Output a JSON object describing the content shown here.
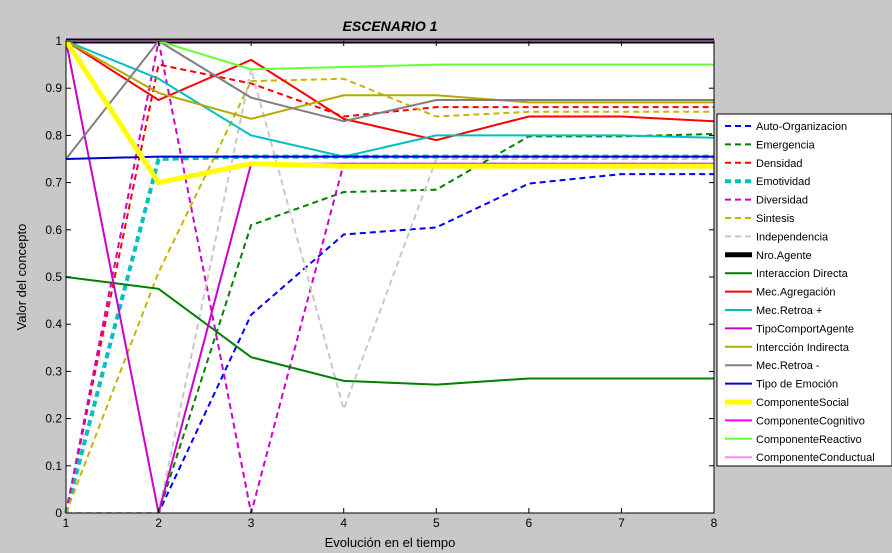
{
  "chart_data": {
    "type": "line",
    "title": "ESCENARIO 1",
    "xlabel": "Evolución en el tiempo",
    "ylabel": "Valor del concepto",
    "xlim": [
      1,
      8
    ],
    "ylim": [
      0,
      1
    ],
    "xticks": [
      "1",
      "2",
      "3",
      "4",
      "5",
      "6",
      "7",
      "8"
    ],
    "yticks": [
      "0",
      "0.1",
      "0.2",
      "0.3",
      "0.4",
      "0.5",
      "0.6",
      "0.7",
      "0.8",
      "0.9",
      "1"
    ],
    "x": [
      1,
      2,
      3,
      4,
      5,
      6,
      7,
      8
    ],
    "grid": false,
    "legend_position": "right",
    "series": [
      {
        "name": "Auto-Organizacion",
        "color": "#0000ff",
        "dash": true,
        "width": 2,
        "values": [
          0,
          0,
          0.42,
          0.59,
          0.605,
          0.698,
          0.718,
          0.718
        ]
      },
      {
        "name": "Emergencia",
        "color": "#008000",
        "dash": true,
        "width": 2,
        "values": [
          0,
          0,
          0.61,
          0.68,
          0.685,
          0.798,
          0.798,
          0.803
        ]
      },
      {
        "name": "Densidad",
        "color": "#ff0000",
        "dash": true,
        "width": 2,
        "values": [
          0,
          0.95,
          0.91,
          0.84,
          0.86,
          0.86,
          0.86,
          0.86
        ]
      },
      {
        "name": "Emotividad",
        "color": "#00c0c0",
        "dash": true,
        "width": 4,
        "values": [
          0,
          0.75,
          0.755,
          0.755,
          0.755,
          0.755,
          0.755,
          0.755
        ]
      },
      {
        "name": "Diversidad",
        "color": "#cc00cc",
        "dash": true,
        "width": 2,
        "values": [
          0,
          1,
          0,
          0.74,
          0.74,
          0.74,
          0.74,
          0.74
        ]
      },
      {
        "name": "Sintesis",
        "color": "#c8b400",
        "dash": true,
        "width": 2,
        "values": [
          0,
          0.51,
          0.915,
          0.92,
          0.84,
          0.85,
          0.85,
          0.85
        ]
      },
      {
        "name": "Independencia",
        "color": "#c8c8c8",
        "dash": true,
        "width": 2,
        "values": [
          0,
          0,
          0.94,
          0.22,
          0.75,
          0.75,
          0.75,
          0.75
        ]
      },
      {
        "name": "Nro.Agente",
        "color": "#000000",
        "dash": false,
        "width": 5,
        "values": [
          1,
          1,
          1,
          1,
          1,
          1,
          1,
          1
        ]
      },
      {
        "name": "Interaccion Directa",
        "color": "#008000",
        "dash": false,
        "width": 2,
        "values": [
          0.5,
          0.475,
          0.33,
          0.28,
          0.272,
          0.285,
          0.285,
          0.285
        ]
      },
      {
        "name": "Mec.Agregación",
        "color": "#ff0000",
        "dash": false,
        "width": 2,
        "values": [
          1,
          0.875,
          0.96,
          0.835,
          0.79,
          0.84,
          0.84,
          0.83
        ]
      },
      {
        "name": "Mec.Retroa +",
        "color": "#00c0c0",
        "dash": false,
        "width": 2,
        "values": [
          1,
          0.92,
          0.8,
          0.755,
          0.8,
          0.8,
          0.8,
          0.795
        ]
      },
      {
        "name": "TipoComportAgente",
        "color": "#cc00cc",
        "dash": false,
        "width": 2,
        "values": [
          1,
          0,
          0.74,
          0.74,
          0.74,
          0.74,
          0.74,
          0.74
        ]
      },
      {
        "name": "Intercción Indirecta",
        "color": "#b4aa00",
        "dash": false,
        "width": 2,
        "values": [
          1,
          0.89,
          0.835,
          0.885,
          0.885,
          0.87,
          0.87,
          0.87
        ]
      },
      {
        "name": "Mec.Retroa -",
        "color": "#808080",
        "dash": false,
        "width": 2,
        "values": [
          0.75,
          1,
          0.88,
          0.83,
          0.875,
          0.875,
          0.875,
          0.875
        ]
      },
      {
        "name": "Tipo de Emoción",
        "color": "#0000cc",
        "dash": false,
        "width": 2,
        "values": [
          0.75,
          0.755,
          0.755,
          0.755,
          0.755,
          0.755,
          0.755,
          0.755
        ]
      },
      {
        "name": "ComponenteSocial",
        "color": "#ffff00",
        "dash": false,
        "width": 5,
        "values": [
          1,
          0.7,
          0.74,
          0.735,
          0.735,
          0.735,
          0.735,
          0.735
        ]
      },
      {
        "name": "ComponenteCognitivo",
        "color": "#ff00ff",
        "dash": false,
        "width": 2,
        "values": [
          1,
          1,
          1,
          1,
          1,
          1,
          1,
          1
        ]
      },
      {
        "name": "ComponenteReactivo",
        "color": "#66ff33",
        "dash": false,
        "width": 2,
        "values": [
          1,
          1,
          0.94,
          0.945,
          0.95,
          0.95,
          0.95,
          0.95
        ]
      },
      {
        "name": "ComponenteConductual",
        "color": "#ff88ff",
        "dash": false,
        "width": 2,
        "values": [
          1,
          1,
          1,
          1,
          1,
          1,
          1,
          1
        ]
      }
    ]
  }
}
